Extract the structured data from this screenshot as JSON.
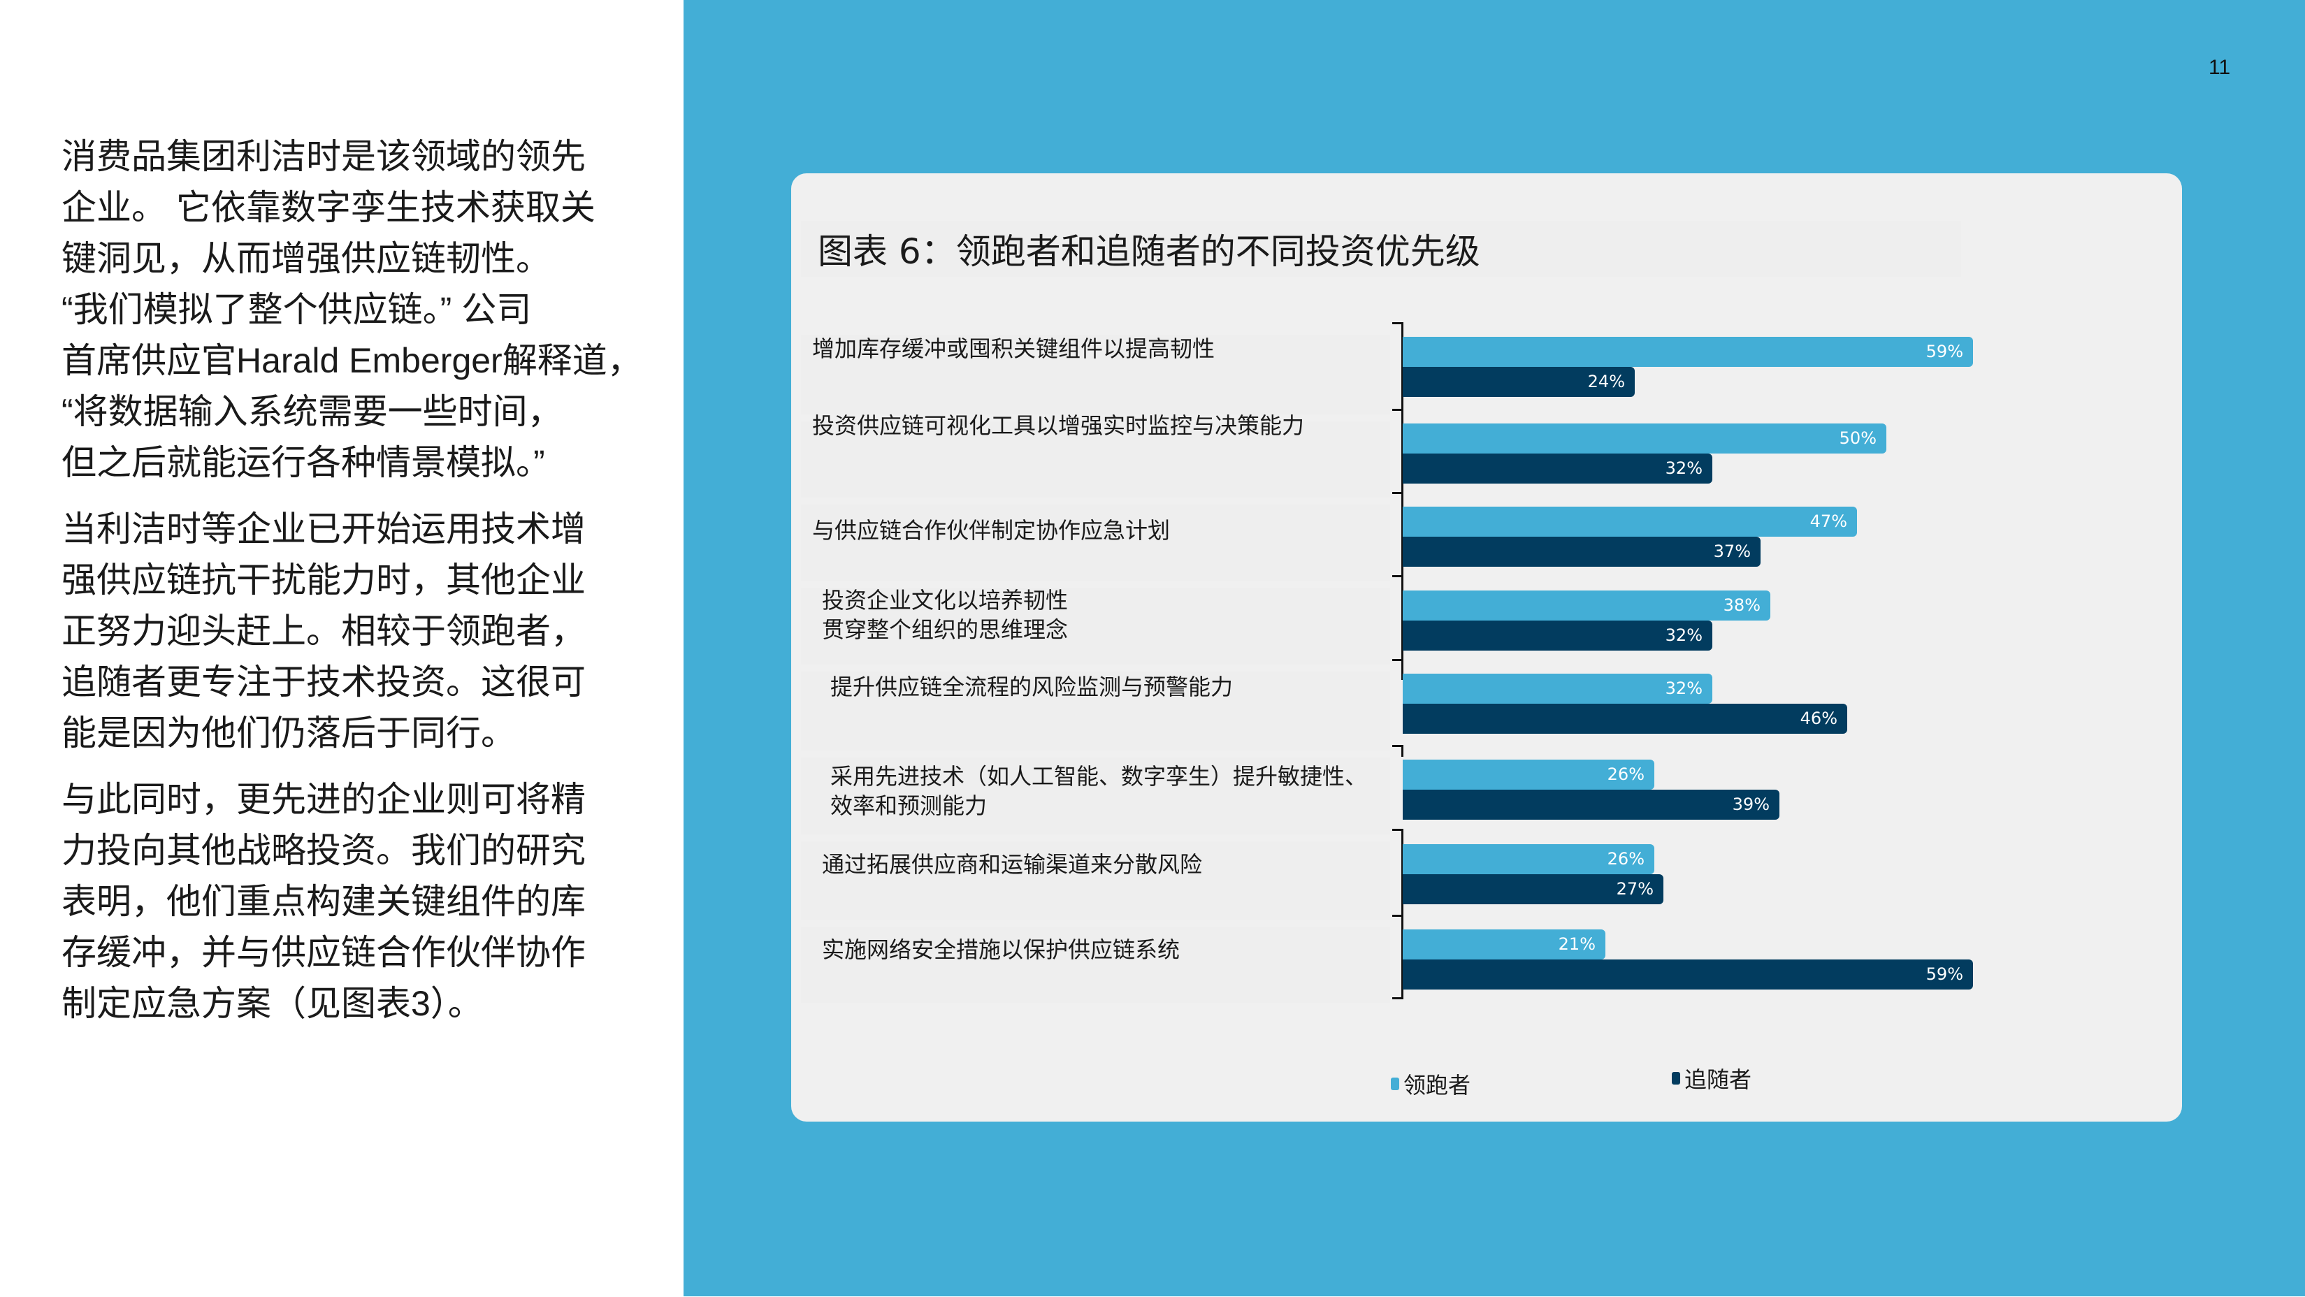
{
  "page": {
    "number": "11",
    "colors": {
      "accent_blue": "#43aed6",
      "dark_navy": "#023c5f",
      "card_bg": "#f0f0f0"
    }
  },
  "body_text": {
    "paragraphs": [
      [
        "消费品集团利洁时是该领域的领先",
        "企业。 它依靠数字孪生技术获取关",
        "键洞见，从而增强供应链韧性。",
        "“我们模拟了整个供应链。” 公司",
        "首席供应官Harald Emberger解释道，",
        "“将数据输入系统需要一些时间，",
        "但之后就能运行各种情景模拟。”"
      ],
      [
        "当利洁时等企业已开始运用技术增",
        "强供应链抗干扰能力时，其他企业",
        "正努力迎头赶上。相较于领跑者，",
        "追随者更专注于技术投资。这很可",
        "能是因为他们仍落后于同行。"
      ],
      [
        "与此同时，更先进的企业则可将精",
        "力投向其他战略投资。我们的研究",
        "表明，他们重点构建关键组件的库",
        "存缓冲，并与供应链合作伙伴协作",
        "制定应急方案（见图表3）。"
      ]
    ]
  },
  "chart_data": {
    "type": "bar",
    "orientation": "horizontal",
    "title": "图表 6：领跑者和追随者的不同投资优先级",
    "categories": [
      "增加库存缓冲或囤积关键组件以提高韧性",
      "投资供应链可视化工具以增强实时监控与决策能力",
      "与供应链合作伙伴制定协作应急计划",
      "投资企业文化以培养韧性\n贯穿整个组织的思维理念",
      "提升供应链全流程的风险监测与预警能力",
      "采用先进技术（如人工智能、数字孪生）提升敏捷性、\n效率和预测能力",
      "通过拓展供应商和运输渠道来分散风险",
      "实施网络安全措施以保护供应链系统"
    ],
    "series": [
      {
        "name": "领跑者",
        "color": "#43aed6",
        "values": [
          59,
          50,
          47,
          38,
          32,
          26,
          26,
          21
        ]
      },
      {
        "name": "追随者",
        "color": "#023c5f",
        "values": [
          24,
          32,
          37,
          32,
          46,
          39,
          27,
          59
        ]
      }
    ],
    "value_labels": {
      "leaders": [
        "59%",
        "50%",
        "47%",
        "38%",
        "32%",
        "26%",
        "26%",
        "21%"
      ],
      "followers": [
        "24%",
        "32%",
        "37%",
        "32%",
        "46%",
        "39%",
        "27%",
        "59%"
      ]
    },
    "xlabel": "",
    "ylabel": "",
    "xlim": [
      0,
      60
    ],
    "grid": false,
    "legend_position": "bottom"
  }
}
